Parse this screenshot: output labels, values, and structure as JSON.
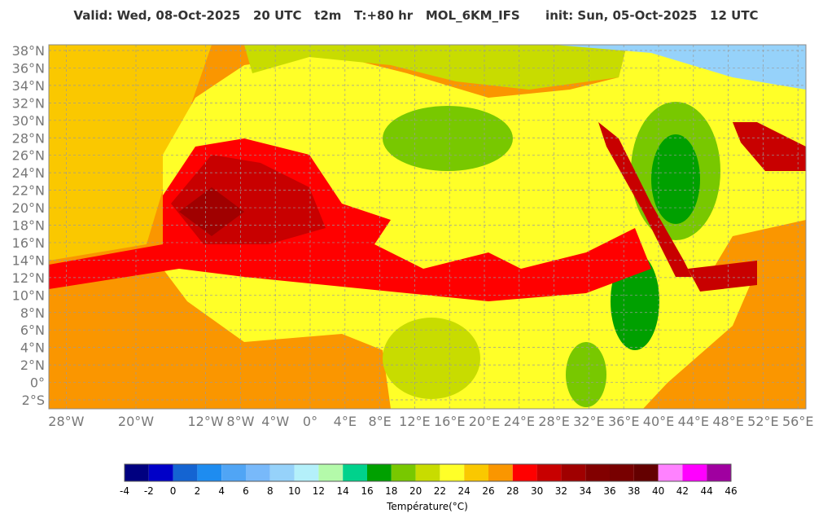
{
  "header": {
    "title": "Valid: Wed, 08-Oct-2025   20 UTC   t2m   T:+80 hr   MOL_6KM_IFS      init: Sun, 05-Oct-2025   12 UTC"
  },
  "map": {
    "lat_ticks": [
      {
        "value": 38,
        "label": "38°N"
      },
      {
        "value": 36,
        "label": "36°N"
      },
      {
        "value": 34,
        "label": "34°N"
      },
      {
        "value": 32,
        "label": "32°N"
      },
      {
        "value": 30,
        "label": "30°N"
      },
      {
        "value": 28,
        "label": "28°N"
      },
      {
        "value": 26,
        "label": "26°N"
      },
      {
        "value": 24,
        "label": "24°N"
      },
      {
        "value": 22,
        "label": "22°N"
      },
      {
        "value": 20,
        "label": "20°N"
      },
      {
        "value": 18,
        "label": "18°N"
      },
      {
        "value": 16,
        "label": "16°N"
      },
      {
        "value": 14,
        "label": "14°N"
      },
      {
        "value": 12,
        "label": "12°N"
      },
      {
        "value": 10,
        "label": "10°N"
      },
      {
        "value": 8,
        "label": "8°N"
      },
      {
        "value": 6,
        "label": "6°N"
      },
      {
        "value": 4,
        "label": "4°N"
      },
      {
        "value": 2,
        "label": "2°N"
      },
      {
        "value": 0,
        "label": "0°"
      },
      {
        "value": -2,
        "label": "2°S"
      }
    ],
    "lon_ticks": [
      {
        "value": -28,
        "label": "28°W"
      },
      {
        "value": -20,
        "label": "20°W"
      },
      {
        "value": -12,
        "label": "12°W"
      },
      {
        "value": -8,
        "label": "8°W"
      },
      {
        "value": -4,
        "label": "4°W"
      },
      {
        "value": 0,
        "label": "0°"
      },
      {
        "value": 4,
        "label": "4°E"
      },
      {
        "value": 8,
        "label": "8°E"
      },
      {
        "value": 12,
        "label": "12°E"
      },
      {
        "value": 16,
        "label": "16°E"
      },
      {
        "value": 20,
        "label": "20°E"
      },
      {
        "value": 24,
        "label": "24°E"
      },
      {
        "value": 28,
        "label": "28°E"
      },
      {
        "value": 32,
        "label": "32°E"
      },
      {
        "value": 36,
        "label": "36°E"
      },
      {
        "value": 40,
        "label": "40°E"
      },
      {
        "value": 44,
        "label": "44°E"
      },
      {
        "value": 48,
        "label": "48°E"
      },
      {
        "value": 52,
        "label": "52°E"
      },
      {
        "value": 56,
        "label": "56°E"
      }
    ]
  },
  "colorbar": {
    "colors": [
      "#000080",
      "#0000c8",
      "#1464d2",
      "#1e8cf0",
      "#50a5f5",
      "#78b9fa",
      "#96d2fa",
      "#b4f0fa",
      "#b4faaa",
      "#00d28c",
      "#00a000",
      "#78c800",
      "#c8dc00",
      "#ffff28",
      "#fac800",
      "#fa9600",
      "#ff0000",
      "#c80000",
      "#a00000",
      "#820000",
      "#780000",
      "#640000",
      "#ff82ff",
      "#ff00ff",
      "#a000a0",
      "#8c64ff"
    ],
    "ticks": [
      -4,
      -2,
      0,
      2,
      4,
      6,
      8,
      10,
      12,
      14,
      16,
      18,
      20,
      22,
      24,
      26,
      28,
      30,
      32,
      34,
      36,
      38,
      40,
      42,
      44,
      46
    ],
    "label": "Température(°C)"
  }
}
